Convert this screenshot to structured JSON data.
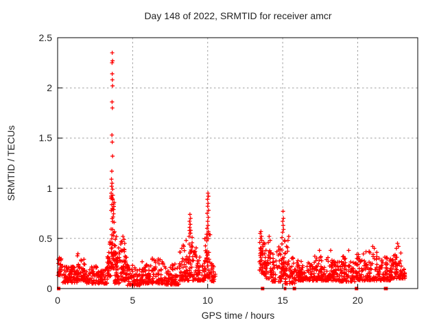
{
  "title": "Day 148 of 2022, SRMTID for receiver amcr",
  "x_axis": {
    "label": "GPS time / hours",
    "tick_values": [
      0,
      5,
      10,
      15,
      20
    ],
    "tick_labels": [
      "0",
      "5",
      "10",
      "15",
      "20"
    ]
  },
  "y_axis": {
    "label": "SRMTID / TECUs",
    "tick_values": [
      0,
      0.5,
      1,
      1.5,
      2,
      2.5
    ],
    "tick_labels": [
      "0",
      "0.5",
      "1",
      "1.5",
      "2",
      "2.5"
    ]
  },
  "colors": {
    "marker": "#ff0000",
    "grid": "#9e9e9e",
    "axis": "#000000",
    "text": "#222222",
    "background": "#ffffff"
  },
  "chart_data": {
    "type": "scatter",
    "marker_style": "plus",
    "title": "Day 148 of 2022, SRMTID for receiver amcr",
    "xlabel": "GPS time / hours",
    "ylabel": "SRMTID / TECUs",
    "xlim": [
      0,
      24
    ],
    "ylim": [
      0,
      2.5
    ],
    "grid": true,
    "legend": "none",
    "series_color": "#ff0000",
    "render_seed": 7,
    "band_segments": [
      {
        "x0": 0.02,
        "x1": 0.35,
        "n": 26,
        "y0": 0.13,
        "e0": 0.32,
        "e1": 0.3,
        "bias": 1.7
      },
      {
        "x0": 0.35,
        "x1": 1.3,
        "n": 80,
        "y0": 0.06,
        "e0": 0.22,
        "e1": 0.22,
        "bias": 2.0
      },
      {
        "x0": 1.3,
        "x1": 1.8,
        "n": 50,
        "y0": 0.08,
        "e0": 0.36,
        "e1": 0.3,
        "bias": 2.0
      },
      {
        "x0": 1.8,
        "x1": 3.3,
        "n": 120,
        "y0": 0.05,
        "e0": 0.25,
        "e1": 0.22,
        "bias": 2.2
      },
      {
        "x0": 3.3,
        "x1": 3.55,
        "n": 30,
        "y0": 0.12,
        "e0": 0.3,
        "e1": 0.55,
        "bias": 1.6
      },
      {
        "x0": 3.55,
        "x1": 3.78,
        "n": 60,
        "y0": 0.2,
        "e0": 1.05,
        "e1": 0.85,
        "bias": 1.9
      },
      {
        "x0": 3.78,
        "x1": 4.15,
        "n": 50,
        "y0": 0.05,
        "e0": 0.6,
        "e1": 0.4,
        "bias": 1.8
      },
      {
        "x0": 4.15,
        "x1": 4.65,
        "n": 55,
        "y0": 0.08,
        "e0": 0.5,
        "e1": 0.33,
        "bias": 1.8
      },
      {
        "x0": 4.65,
        "x1": 5.5,
        "n": 70,
        "y0": 0.03,
        "e0": 0.25,
        "e1": 0.22,
        "bias": 2.0
      },
      {
        "x0": 5.5,
        "x1": 6.3,
        "n": 65,
        "y0": 0.05,
        "e0": 0.28,
        "e1": 0.25,
        "bias": 2.0
      },
      {
        "x0": 6.3,
        "x1": 7.1,
        "n": 65,
        "y0": 0.05,
        "e0": 0.33,
        "e1": 0.28,
        "bias": 2.0
      },
      {
        "x0": 7.1,
        "x1": 8.1,
        "n": 75,
        "y0": 0.04,
        "e0": 0.22,
        "e1": 0.26,
        "bias": 2.2
      },
      {
        "x0": 8.1,
        "x1": 8.75,
        "n": 60,
        "y0": 0.08,
        "e0": 0.35,
        "e1": 0.55,
        "bias": 1.7
      },
      {
        "x0": 8.75,
        "x1": 9.0,
        "n": 35,
        "y0": 0.12,
        "e0": 0.6,
        "e1": 0.5,
        "bias": 1.7
      },
      {
        "x0": 9.0,
        "x1": 9.8,
        "n": 70,
        "y0": 0.08,
        "e0": 0.45,
        "e1": 0.3,
        "bias": 2.0
      },
      {
        "x0": 9.8,
        "x1": 10.2,
        "n": 45,
        "y0": 0.1,
        "e0": 0.5,
        "e1": 0.6,
        "bias": 1.6
      },
      {
        "x0": 10.2,
        "x1": 10.55,
        "n": 25,
        "y0": 0.07,
        "e0": 0.3,
        "e1": 0.16,
        "bias": 2.0
      },
      {
        "x0": 13.45,
        "x1": 13.7,
        "n": 30,
        "y0": 0.15,
        "e0": 0.45,
        "e1": 0.5,
        "bias": 1.5
      },
      {
        "x0": 13.7,
        "x1": 14.3,
        "n": 55,
        "y0": 0.1,
        "e0": 0.5,
        "e1": 0.35,
        "bias": 1.8
      },
      {
        "x0": 14.3,
        "x1": 14.95,
        "n": 55,
        "y0": 0.07,
        "e0": 0.35,
        "e1": 0.45,
        "bias": 2.0
      },
      {
        "x0": 14.95,
        "x1": 15.15,
        "n": 30,
        "y0": 0.12,
        "e0": 0.55,
        "e1": 0.5,
        "bias": 1.6
      },
      {
        "x0": 15.15,
        "x1": 15.85,
        "n": 60,
        "y0": 0.05,
        "e0": 0.45,
        "e1": 0.3,
        "bias": 1.9
      },
      {
        "x0": 15.85,
        "x1": 16.6,
        "n": 65,
        "y0": 0.08,
        "e0": 0.3,
        "e1": 0.25,
        "bias": 2.0
      },
      {
        "x0": 16.6,
        "x1": 17.7,
        "n": 90,
        "y0": 0.08,
        "e0": 0.3,
        "e1": 0.35,
        "bias": 2.1
      },
      {
        "x0": 17.7,
        "x1": 18.8,
        "n": 90,
        "y0": 0.08,
        "e0": 0.35,
        "e1": 0.28,
        "bias": 2.1
      },
      {
        "x0": 18.8,
        "x1": 19.9,
        "n": 90,
        "y0": 0.07,
        "e0": 0.33,
        "e1": 0.3,
        "bias": 2.1
      },
      {
        "x0": 19.9,
        "x1": 21.3,
        "n": 110,
        "y0": 0.08,
        "e0": 0.35,
        "e1": 0.42,
        "bias": 2.1
      },
      {
        "x0": 21.3,
        "x1": 22.2,
        "n": 75,
        "y0": 0.08,
        "e0": 0.3,
        "e1": 0.33,
        "bias": 2.1
      },
      {
        "x0": 22.2,
        "x1": 22.9,
        "n": 60,
        "y0": 0.1,
        "e0": 0.35,
        "e1": 0.45,
        "bias": 1.9
      },
      {
        "x0": 22.9,
        "x1": 23.15,
        "n": 20,
        "y0": 0.1,
        "e0": 0.3,
        "e1": 0.2,
        "bias": 1.8
      }
    ],
    "outlier_points": [
      [
        3.64,
        2.35
      ],
      [
        3.66,
        2.27
      ],
      [
        3.63,
        2.25
      ],
      [
        3.64,
        2.14
      ],
      [
        3.65,
        2.08
      ],
      [
        3.66,
        2.02
      ],
      [
        3.63,
        1.86
      ],
      [
        3.65,
        1.8
      ],
      [
        3.62,
        1.53
      ],
      [
        3.64,
        1.46
      ],
      [
        3.66,
        1.32
      ],
      [
        3.61,
        1.17
      ],
      [
        3.59,
        1.09
      ],
      [
        3.63,
        1.05
      ],
      [
        3.6,
        1.02
      ],
      [
        3.66,
        0.99
      ],
      [
        3.57,
        0.95
      ],
      [
        3.68,
        0.93
      ],
      [
        3.56,
        0.9
      ],
      [
        4.35,
        0.52
      ],
      [
        4.42,
        0.49
      ],
      [
        4.3,
        0.47
      ],
      [
        4.47,
        0.45
      ],
      [
        8.82,
        0.74
      ],
      [
        8.86,
        0.7
      ],
      [
        8.79,
        0.67
      ],
      [
        8.84,
        0.64
      ],
      [
        8.8,
        0.61
      ],
      [
        8.87,
        0.58
      ],
      [
        8.83,
        0.55
      ],
      [
        8.76,
        0.52
      ],
      [
        10.02,
        0.95
      ],
      [
        10.05,
        0.92
      ],
      [
        9.99,
        0.89
      ],
      [
        10.03,
        0.85
      ],
      [
        10.0,
        0.82
      ],
      [
        10.06,
        0.78
      ],
      [
        9.97,
        0.75
      ],
      [
        10.04,
        0.71
      ],
      [
        10.0,
        0.67
      ],
      [
        10.02,
        0.63
      ],
      [
        9.96,
        0.6
      ],
      [
        10.05,
        0.57
      ],
      [
        9.93,
        0.54
      ],
      [
        13.55,
        0.57
      ],
      [
        13.5,
        0.55
      ],
      [
        13.59,
        0.52
      ],
      [
        13.52,
        0.5
      ],
      [
        13.61,
        0.48
      ],
      [
        13.47,
        0.46
      ],
      [
        14.1,
        0.52
      ],
      [
        14.16,
        0.48
      ],
      [
        14.04,
        0.46
      ],
      [
        15.02,
        0.77
      ],
      [
        15.05,
        0.7
      ],
      [
        15.0,
        0.67
      ],
      [
        15.03,
        0.63
      ],
      [
        15.06,
        0.59
      ],
      [
        14.99,
        0.56
      ],
      [
        15.4,
        0.52
      ],
      [
        15.35,
        0.48
      ],
      [
        17.45,
        0.38
      ],
      [
        18.2,
        0.38
      ],
      [
        19.4,
        0.38
      ],
      [
        21.0,
        0.42
      ],
      [
        21.1,
        0.4
      ],
      [
        22.65,
        0.45
      ],
      [
        22.72,
        0.42
      ],
      [
        22.58,
        0.4
      ]
    ],
    "zero_markers": [
      {
        "x": 0.07,
        "w": 5
      },
      {
        "x": 13.66,
        "w": 5
      },
      {
        "x": 15.12,
        "w": 2
      },
      {
        "x": 15.2,
        "w": 2
      },
      {
        "x": 15.78,
        "w": 5
      },
      {
        "x": 19.92,
        "w": 5
      },
      {
        "x": 21.79,
        "w": 2
      },
      {
        "x": 21.88,
        "w": 2
      },
      {
        "x": 21.96,
        "w": 2
      }
    ]
  }
}
